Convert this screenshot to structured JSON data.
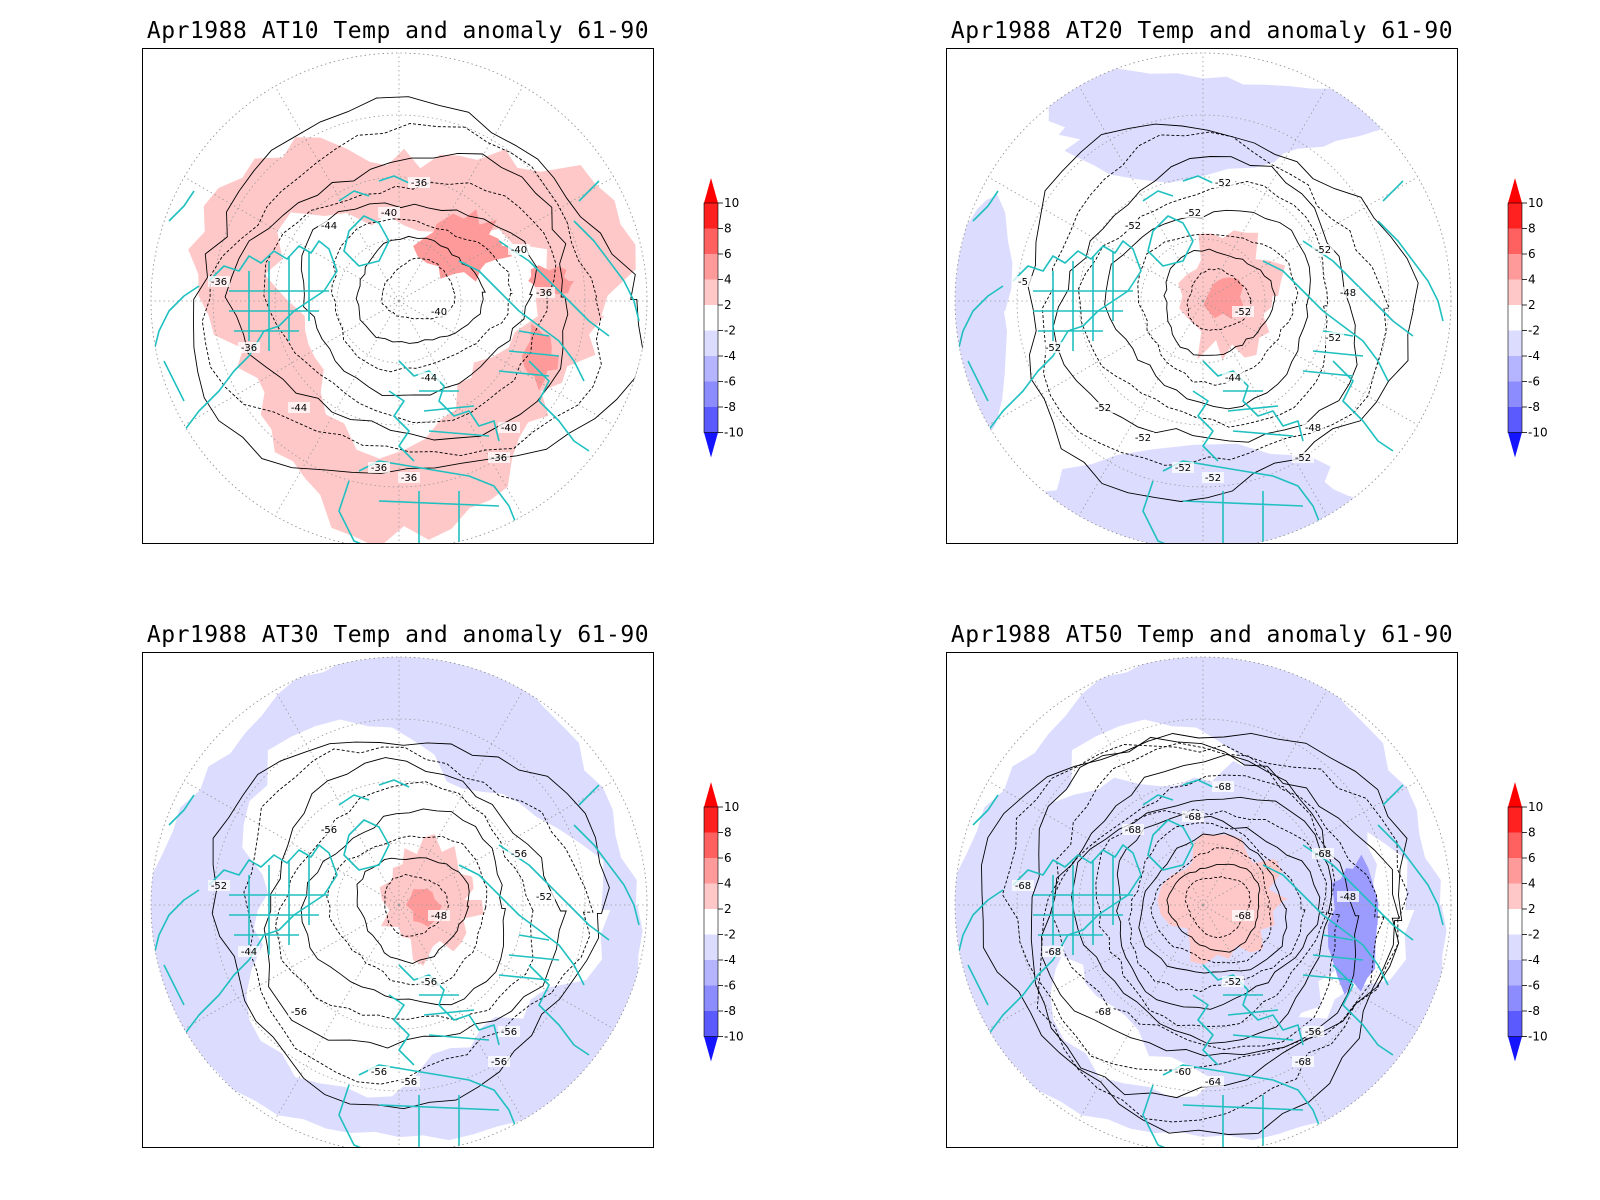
{
  "colorbar": {
    "levels": [
      10,
      8,
      6,
      4,
      2,
      -2,
      -4,
      -6,
      -8,
      -10
    ],
    "segment_colors": [
      "#ff2020",
      "#ff6060",
      "#ff9a9a",
      "#ffc8c8",
      "#ffffff",
      "#dcdcff",
      "#b4b4ff",
      "#8c8cff",
      "#5a5aff"
    ],
    "top_arrow_color": "#ff0000",
    "bottom_arrow_color": "#1414ff"
  },
  "colors": {
    "coastline": "#20c0c0",
    "contour": "#000000",
    "warm_anomaly": "#ffc8c8",
    "warm_anomaly_strong": "#ff9a9a",
    "cold_anomaly": "#dcdcff",
    "cold_anomaly_strong": "#9c9cff"
  },
  "panels": [
    {
      "id": "at10",
      "title": "Apr1988 AT10 Temp and anomaly 61-90",
      "anomaly": "warm",
      "contour_labels": [
        "-44",
        "-40",
        "-36",
        "-36",
        "-40",
        "-36",
        "-44",
        "-40",
        "-36",
        "-36",
        "-44",
        "-36",
        "-36",
        "-40"
      ]
    },
    {
      "id": "at20",
      "title": "Apr1988 AT20 Temp and anomaly 61-90",
      "anomaly": "mixed",
      "contour_labels": [
        "-52",
        "-52",
        "-5",
        "-52",
        "-52",
        "-48",
        "-44",
        "-48",
        "-52",
        "-52",
        "-52",
        "-52",
        "-52",
        "-52",
        "-52",
        "-52"
      ]
    },
    {
      "id": "at30",
      "title": "Apr1988 AT30 Temp and anomaly 61-90",
      "anomaly": "cold",
      "contour_labels": [
        "-56",
        "-56",
        "-52",
        "-44",
        "-48",
        "-52",
        "-56",
        "-56",
        "-56",
        "-56",
        "-56",
        "-56"
      ]
    },
    {
      "id": "at50",
      "title": "Apr1988 AT50 Temp and anomaly 61-90",
      "anomaly": "cold",
      "contour_labels": [
        "-68",
        "-68",
        "-68",
        "-68",
        "-68",
        "-48",
        "-52",
        "-56",
        "-60",
        "-64",
        "-68",
        "-68",
        "-68",
        "-68"
      ]
    }
  ]
}
